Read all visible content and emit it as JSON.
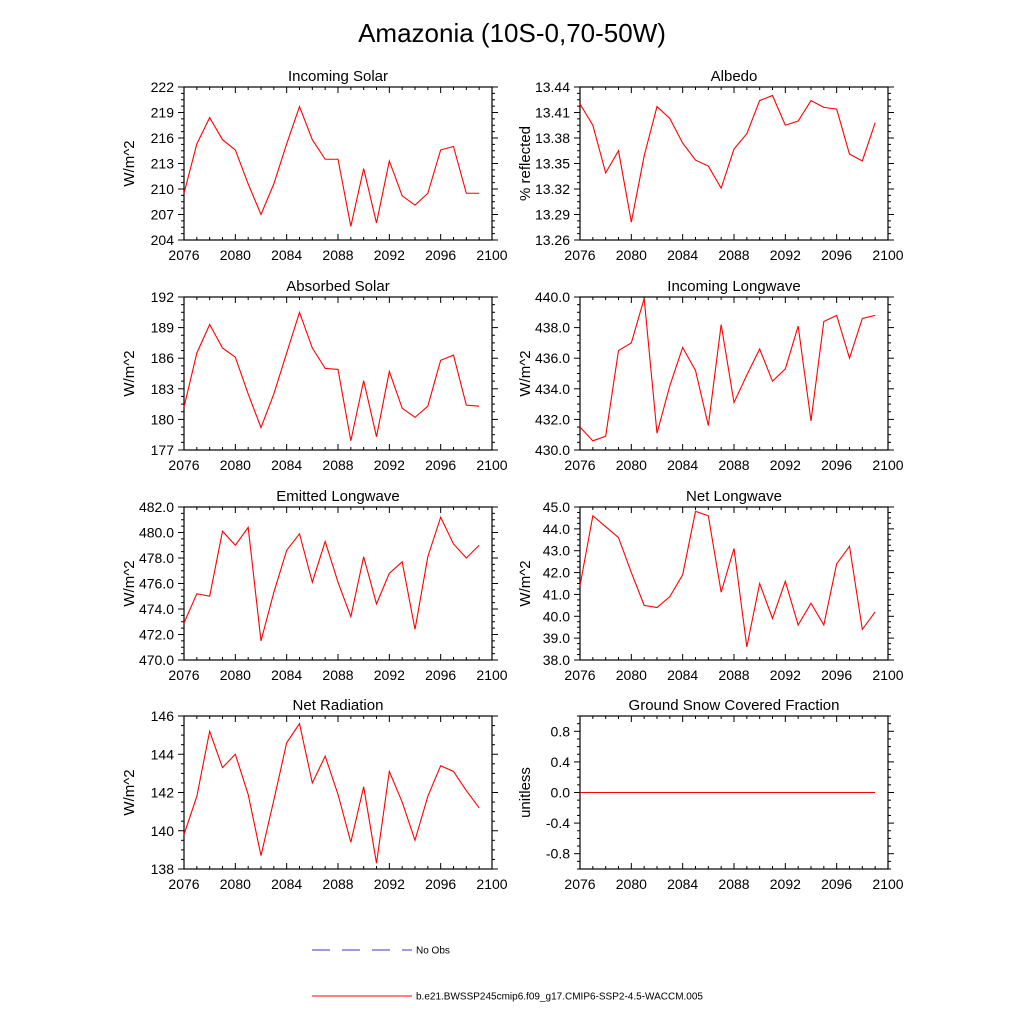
{
  "figure": {
    "title": "Amazonia (10S-0,70-50W)"
  },
  "legend": {
    "entries": [
      {
        "label": "No Obs",
        "color": "#3b3bb8",
        "style": "dashed"
      },
      {
        "label": "b.e21.BWSSP245cmip6.f09_g17.CMIP6-SSP2-4.5-WACCM.005",
        "color": "#ff0000",
        "style": "solid"
      }
    ]
  },
  "chart_data": [
    {
      "type": "line",
      "title": "Incoming Solar",
      "xlabel": "",
      "ylabel": "W/m^2",
      "xlim": [
        2076,
        2100
      ],
      "ylim": [
        204,
        222
      ],
      "xticks": [
        2076,
        2080,
        2084,
        2088,
        2092,
        2096,
        2100
      ],
      "yticks": [
        "204",
        "207",
        "210",
        "213",
        "216",
        "219",
        "222"
      ],
      "grid": false,
      "series": [
        {
          "color": "#ff0000",
          "x": [
            2076,
            2077,
            2078,
            2079,
            2080,
            2081,
            2082,
            2083,
            2084,
            2085,
            2086,
            2087,
            2088,
            2089,
            2090,
            2091,
            2092,
            2093,
            2094,
            2095,
            2096,
            2097,
            2098,
            2099
          ],
          "values": [
            209.5,
            215.3,
            218.4,
            215.8,
            214.6,
            210.6,
            207.0,
            210.6,
            215.3,
            219.7,
            215.8,
            213.5,
            213.5,
            205.6,
            212.4,
            206.0,
            213.3,
            209.2,
            208.1,
            209.5,
            214.6,
            215.0,
            209.5,
            209.5
          ]
        }
      ]
    },
    {
      "type": "line",
      "title": "Albedo",
      "xlabel": "",
      "ylabel": "% reflected",
      "xlim": [
        2076,
        2100
      ],
      "ylim": [
        13.26,
        13.44
      ],
      "xticks": [
        2076,
        2080,
        2084,
        2088,
        2092,
        2096,
        2100
      ],
      "yticks": [
        "13.26",
        "13.29",
        "13.32",
        "13.35",
        "13.38",
        "13.41",
        "13.44"
      ],
      "grid": false,
      "series": [
        {
          "color": "#ff0000",
          "x": [
            2076,
            2077,
            2078,
            2079,
            2080,
            2081,
            2082,
            2083,
            2084,
            2085,
            2086,
            2087,
            2088,
            2089,
            2090,
            2091,
            2092,
            2093,
            2094,
            2095,
            2096,
            2097,
            2098,
            2099
          ],
          "values": [
            13.42,
            13.395,
            13.339,
            13.365,
            13.281,
            13.359,
            13.417,
            13.403,
            13.374,
            13.354,
            13.347,
            13.321,
            13.367,
            13.385,
            13.424,
            13.43,
            13.395,
            13.4,
            13.424,
            13.416,
            13.414,
            13.361,
            13.353,
            13.398
          ]
        }
      ]
    },
    {
      "type": "line",
      "title": "Absorbed Solar",
      "xlabel": "",
      "ylabel": "W/m^2",
      "xlim": [
        2076,
        2100
      ],
      "ylim": [
        177,
        192
      ],
      "xticks": [
        2076,
        2080,
        2084,
        2088,
        2092,
        2096,
        2100
      ],
      "yticks": [
        "177",
        "180",
        "183",
        "186",
        "189",
        "192"
      ],
      "grid": false,
      "series": [
        {
          "color": "#ff0000",
          "x": [
            2076,
            2077,
            2078,
            2079,
            2080,
            2081,
            2082,
            2083,
            2084,
            2085,
            2086,
            2087,
            2088,
            2089,
            2090,
            2091,
            2092,
            2093,
            2094,
            2095,
            2096,
            2097,
            2098,
            2099
          ],
          "values": [
            181.2,
            186.5,
            189.3,
            187.0,
            186.1,
            182.5,
            179.2,
            182.5,
            186.5,
            190.5,
            187.0,
            185.0,
            184.9,
            177.9,
            183.8,
            178.3,
            184.7,
            181.1,
            180.2,
            181.3,
            185.8,
            186.3,
            181.4,
            181.3
          ]
        }
      ]
    },
    {
      "type": "line",
      "title": "Incoming Longwave",
      "xlabel": "",
      "ylabel": "W/m^2",
      "xlim": [
        2076,
        2100
      ],
      "ylim": [
        430.0,
        440.0
      ],
      "xticks": [
        2076,
        2080,
        2084,
        2088,
        2092,
        2096,
        2100
      ],
      "yticks": [
        "430.0",
        "432.0",
        "434.0",
        "436.0",
        "438.0",
        "440.0"
      ],
      "grid": false,
      "series": [
        {
          "color": "#ff0000",
          "x": [
            2076,
            2077,
            2078,
            2079,
            2080,
            2081,
            2082,
            2083,
            2084,
            2085,
            2086,
            2087,
            2088,
            2089,
            2090,
            2091,
            2092,
            2093,
            2094,
            2095,
            2096,
            2097,
            2098,
            2099
          ],
          "values": [
            431.5,
            430.6,
            430.9,
            436.5,
            437.0,
            439.9,
            431.1,
            434.2,
            436.7,
            435.2,
            431.6,
            438.2,
            433.1,
            434.9,
            436.6,
            434.5,
            435.3,
            438.1,
            431.9,
            438.4,
            438.8,
            436.0,
            438.6,
            438.8
          ]
        }
      ]
    },
    {
      "type": "line",
      "title": "Emitted Longwave",
      "xlabel": "",
      "ylabel": "W/m^2",
      "xlim": [
        2076,
        2100
      ],
      "ylim": [
        470.0,
        482.0
      ],
      "xticks": [
        2076,
        2080,
        2084,
        2088,
        2092,
        2096,
        2100
      ],
      "yticks": [
        "470.0",
        "472.0",
        "474.0",
        "476.0",
        "478.0",
        "480.0",
        "482.0"
      ],
      "grid": false,
      "series": [
        {
          "color": "#ff0000",
          "x": [
            2076,
            2077,
            2078,
            2079,
            2080,
            2081,
            2082,
            2083,
            2084,
            2085,
            2086,
            2087,
            2088,
            2089,
            2090,
            2091,
            2092,
            2093,
            2094,
            2095,
            2096,
            2097,
            2098,
            2099
          ],
          "values": [
            472.9,
            475.2,
            475.0,
            480.1,
            479.0,
            480.4,
            471.5,
            475.3,
            478.6,
            479.9,
            476.1,
            479.3,
            476.1,
            473.4,
            478.1,
            474.4,
            476.8,
            477.7,
            472.4,
            478.1,
            481.2,
            479.1,
            478.0,
            479.0
          ]
        }
      ]
    },
    {
      "type": "line",
      "title": "Net Longwave",
      "xlabel": "",
      "ylabel": "W/m^2",
      "xlim": [
        2076,
        2100
      ],
      "ylim": [
        38.0,
        45.0
      ],
      "xticks": [
        2076,
        2080,
        2084,
        2088,
        2092,
        2096,
        2100
      ],
      "yticks": [
        "38.0",
        "39.0",
        "40.0",
        "41.0",
        "42.0",
        "43.0",
        "44.0",
        "45.0"
      ],
      "grid": false,
      "series": [
        {
          "color": "#ff0000",
          "x": [
            2076,
            2077,
            2078,
            2079,
            2080,
            2081,
            2082,
            2083,
            2084,
            2085,
            2086,
            2087,
            2088,
            2089,
            2090,
            2091,
            2092,
            2093,
            2094,
            2095,
            2096,
            2097,
            2098,
            2099
          ],
          "values": [
            41.4,
            44.6,
            44.1,
            43.6,
            42.0,
            40.5,
            40.4,
            40.9,
            41.9,
            44.8,
            44.6,
            41.1,
            43.1,
            38.6,
            41.5,
            39.9,
            41.6,
            39.6,
            40.6,
            39.6,
            42.4,
            43.2,
            39.4,
            40.2
          ]
        }
      ]
    },
    {
      "type": "line",
      "title": "Net Radiation",
      "xlabel": "",
      "ylabel": "W/m^2",
      "xlim": [
        2076,
        2100
      ],
      "ylim": [
        138,
        146
      ],
      "xticks": [
        2076,
        2080,
        2084,
        2088,
        2092,
        2096,
        2100
      ],
      "yticks": [
        "138",
        "140",
        "142",
        "144",
        "146"
      ],
      "grid": false,
      "series": [
        {
          "color": "#ff0000",
          "x": [
            2076,
            2077,
            2078,
            2079,
            2080,
            2081,
            2082,
            2083,
            2084,
            2085,
            2086,
            2087,
            2088,
            2089,
            2090,
            2091,
            2092,
            2093,
            2094,
            2095,
            2096,
            2097,
            2098,
            2099
          ],
          "values": [
            139.8,
            141.8,
            145.2,
            143.3,
            144.0,
            141.9,
            138.7,
            141.6,
            144.6,
            145.6,
            142.5,
            143.9,
            141.9,
            139.4,
            142.3,
            138.3,
            143.1,
            141.5,
            139.5,
            141.8,
            143.4,
            143.1,
            142.1,
            141.2
          ]
        }
      ]
    },
    {
      "type": "line",
      "title": "Ground Snow Covered Fraction",
      "xlabel": "",
      "ylabel": "unitless",
      "xlim": [
        2076,
        2100
      ],
      "ylim": [
        -1.0,
        1.0
      ],
      "xticks": [
        2076,
        2080,
        2084,
        2088,
        2092,
        2096,
        2100
      ],
      "yticks": [
        "-0.8",
        "-0.4",
        "0.0",
        "0.4",
        "0.8"
      ],
      "grid": false,
      "series": [
        {
          "color": "#ff0000",
          "x": [
            2076,
            2077,
            2078,
            2079,
            2080,
            2081,
            2082,
            2083,
            2084,
            2085,
            2086,
            2087,
            2088,
            2089,
            2090,
            2091,
            2092,
            2093,
            2094,
            2095,
            2096,
            2097,
            2098,
            2099
          ],
          "values": [
            0,
            0,
            0,
            0,
            0,
            0,
            0,
            0,
            0,
            0,
            0,
            0,
            0,
            0,
            0,
            0,
            0,
            0,
            0,
            0,
            0,
            0,
            0,
            0
          ]
        }
      ]
    }
  ]
}
